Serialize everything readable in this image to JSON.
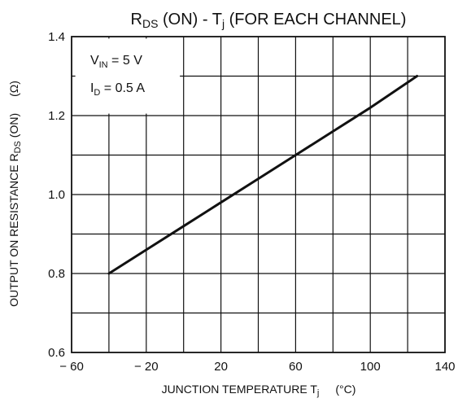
{
  "chart_data": {
    "type": "line",
    "title": {
      "main": "R",
      "sub": "DS",
      "rest": " (ON) - T",
      "j_sub": "j",
      "tail": " (FOR EACH CHANNEL)"
    },
    "xlabel": {
      "main": "JUNCTION TEMPERATURE T",
      "sub": "j",
      "unit": "(°C)"
    },
    "ylabel": {
      "main": "OUTPUT ON RESISTANCE R",
      "sub": "DS",
      "rest": " (ON)",
      "unit": "(Ω)"
    },
    "xlim": [
      -60,
      140
    ],
    "ylim": [
      0.6,
      1.4
    ],
    "x_ticks": [
      {
        "value": -60,
        "label": "− 60"
      },
      {
        "value": -20,
        "label": "− 20"
      },
      {
        "value": 20,
        "label": "20"
      },
      {
        "value": 60,
        "label": "60"
      },
      {
        "value": 100,
        "label": "100"
      },
      {
        "value": 140,
        "label": "140"
      }
    ],
    "y_ticks": [
      {
        "value": 0.6,
        "label": "0.6"
      },
      {
        "value": 0.8,
        "label": "0.8"
      },
      {
        "value": 1.0,
        "label": "1.0"
      },
      {
        "value": 1.2,
        "label": "1.2"
      },
      {
        "value": 1.4,
        "label": "1.4"
      }
    ],
    "grid": true,
    "conditions": [
      {
        "main": "V",
        "sub": "IN",
        "rest": " = 5 V"
      },
      {
        "main": "I",
        "sub": "D",
        "rest": " = 0.5 A"
      }
    ],
    "series": [
      {
        "x": [
          -40,
          -20,
          0,
          20,
          40,
          60,
          80,
          100,
          125
        ],
        "y": [
          0.8,
          0.86,
          0.92,
          0.98,
          1.04,
          1.1,
          1.16,
          1.22,
          1.3
        ]
      }
    ]
  }
}
